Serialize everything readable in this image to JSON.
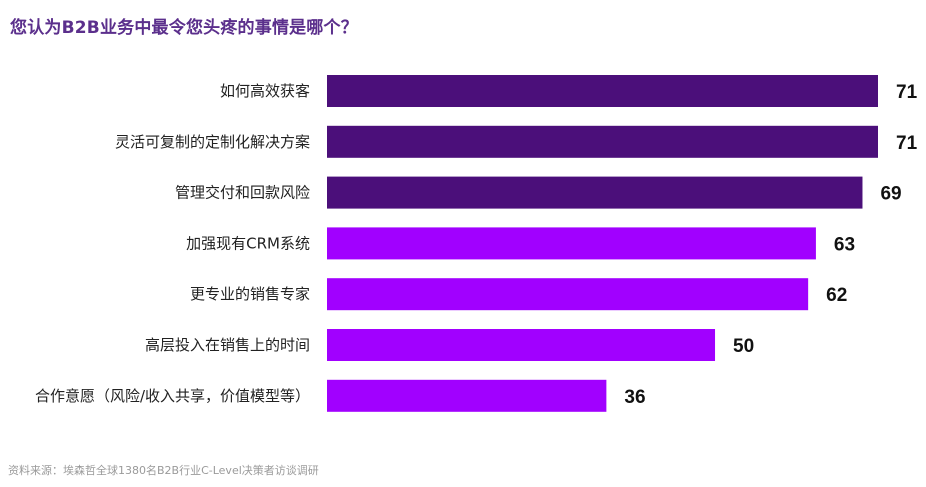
{
  "chart_data": {
    "type": "bar",
    "orientation": "horizontal",
    "title": "您认为B2B业务中最令您头疼的事情是哪个？",
    "categories": [
      "如何高效获客",
      "灵活可复制的定制化解决方案",
      "管理交付和回款风险",
      "加强现有CRM系统",
      "更专业的销售专家",
      "高层投入在销售上的时间",
      "合作意愿（风险/收入共享，价值模型等）"
    ],
    "values": [
      71,
      71,
      69,
      63,
      62,
      50,
      36
    ],
    "bar_colors": [
      "#4b0f7a",
      "#4b0f7a",
      "#4b0f7a",
      "#a100ff",
      "#a100ff",
      "#a100ff",
      "#a100ff"
    ],
    "xlim": [
      0,
      71
    ],
    "grid": false,
    "legend": "none",
    "source": "资料来源：埃森哲全球1380名B2B行业C-Level决策者访谈调研"
  }
}
